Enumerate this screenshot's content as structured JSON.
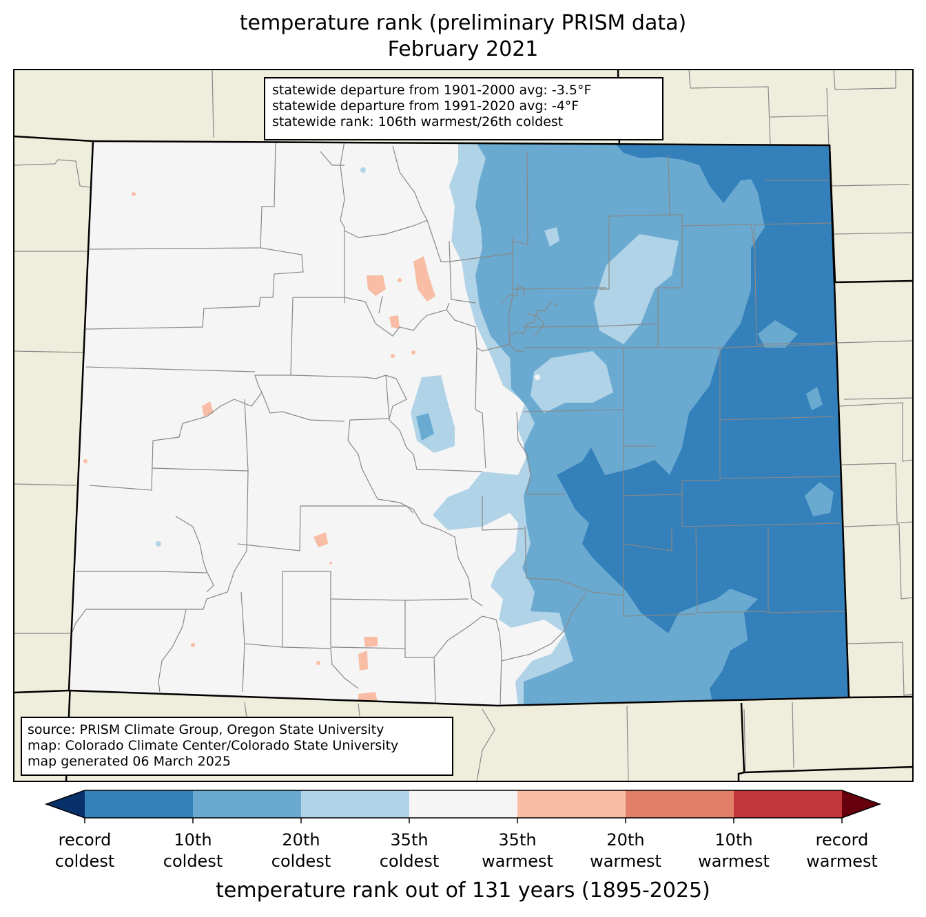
{
  "title": {
    "line1": "temperature rank (preliminary PRISM data)",
    "line2": "February 2021"
  },
  "stats_box": {
    "line1": "statewide departure from 1901-2000 avg: -3.5°F",
    "line2": "statewide departure from 1991-2020 avg: -4°F",
    "line3": "statewide rank: 106th warmest/26th coldest"
  },
  "source_box": {
    "line1": "source: PRISM Climate Group, Oregon State University",
    "line2": "map: Colorado Climate Center/Colorado State University",
    "line3": "map generated 06 March 2025"
  },
  "colorbar": {
    "label": "temperature rank out of 131 years (1895-2025)",
    "ticks": [
      {
        "top": "record",
        "bottom": "coldest"
      },
      {
        "top": "10th",
        "bottom": "coldest"
      },
      {
        "top": "20th",
        "bottom": "coldest"
      },
      {
        "top": "35th",
        "bottom": "coldest"
      },
      {
        "top": "35th",
        "bottom": "warmest"
      },
      {
        "top": "20th",
        "bottom": "warmest"
      },
      {
        "top": "10th",
        "bottom": "warmest"
      },
      {
        "top": "record",
        "bottom": "warmest"
      }
    ],
    "colors": {
      "below_record_coldest": "#08306b",
      "record_to_10th_coldest": "#3380bb",
      "10th_to_20th_coldest": "#6aaad1",
      "20th_to_35th_coldest": "#b1d3e7",
      "near_normal": "#f5f5f5",
      "35th_to_20th_warmest": "#f8bda4",
      "20th_to_10th_warmest": "#e17f68",
      "10th_to_record_warmest": "#c0363a",
      "above_record_warmest": "#67000d"
    }
  },
  "map_colors": {
    "land_outside": "#efeedc",
    "state_interior": "#f5f5f5",
    "county_lines": "#888888",
    "state_border": "#000000"
  }
}
